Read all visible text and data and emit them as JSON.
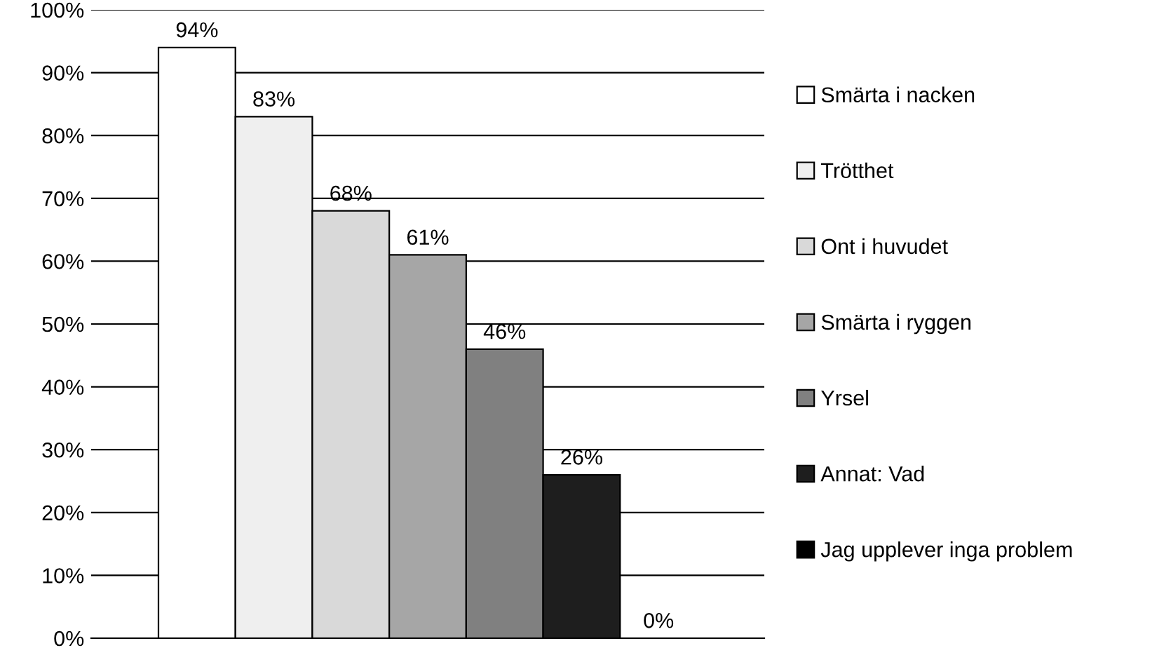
{
  "chart_data": {
    "type": "bar",
    "categories": [
      null
    ],
    "series": [
      {
        "name": "Smärta i nacken",
        "color": "#ffffff",
        "values": [
          94
        ],
        "value_labels": [
          "94%"
        ]
      },
      {
        "name": "Trötthet",
        "color": "#efefef",
        "values": [
          83
        ],
        "value_labels": [
          "83%"
        ]
      },
      {
        "name": "Ont i huvudet",
        "color": "#d9d9d9",
        "values": [
          68
        ],
        "value_labels": [
          "68%"
        ]
      },
      {
        "name": "Smärta i ryggen",
        "color": "#a6a6a6",
        "values": [
          61
        ],
        "value_labels": [
          "61%"
        ]
      },
      {
        "name": "Yrsel",
        "color": "#808080",
        "values": [
          46
        ],
        "value_labels": [
          "46%"
        ]
      },
      {
        "name": "Annat: Vad",
        "color": "#1e1e1e",
        "values": [
          26
        ],
        "value_labels": [
          "26%"
        ]
      },
      {
        "name": "Jag upplever inga problem",
        "color": "#000000",
        "values": [
          0
        ],
        "value_labels": [
          "0%"
        ]
      }
    ],
    "ylim": [
      0,
      100
    ],
    "yticks": [
      {
        "value": 0,
        "label": "0%"
      },
      {
        "value": 10,
        "label": "10%"
      },
      {
        "value": 20,
        "label": "20%"
      },
      {
        "value": 30,
        "label": "30%"
      },
      {
        "value": 40,
        "label": "40%"
      },
      {
        "value": 50,
        "label": "50%"
      },
      {
        "value": 60,
        "label": "60%"
      },
      {
        "value": 70,
        "label": "70%"
      },
      {
        "value": 80,
        "label": "80%"
      },
      {
        "value": 90,
        "label": "90%"
      },
      {
        "value": 100,
        "label": "100%"
      }
    ],
    "grid": "y",
    "legend": "right"
  }
}
